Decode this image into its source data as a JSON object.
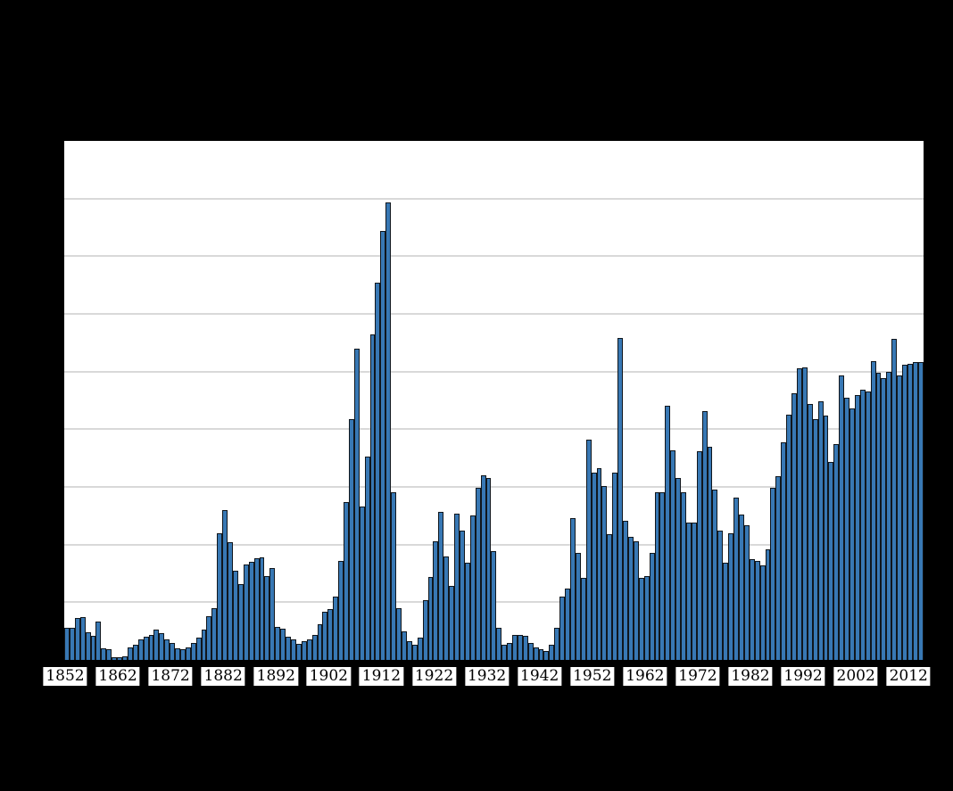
{
  "window": {
    "background": "#000000"
  },
  "chart_data": {
    "type": "bar",
    "title": "",
    "xlabel": "",
    "ylabel": "",
    "grid": "horizontal",
    "legend": "none",
    "year_first": 1852,
    "year_last": 2014,
    "x_tick_labels": [
      "1852",
      "1862",
      "1872",
      "1882",
      "1892",
      "1902",
      "1912",
      "1922",
      "1932",
      "1942",
      "1952",
      "1962",
      "1972",
      "1982",
      "1992",
      "2002",
      "2012"
    ],
    "ylim": [
      0,
      450
    ],
    "gridline_step": 50,
    "gridline_values": [
      50,
      100,
      150,
      200,
      250,
      300,
      350,
      400
    ],
    "values": [
      28,
      28,
      36,
      37,
      24,
      21,
      33,
      10,
      9,
      2,
      2,
      3,
      11,
      13,
      18,
      20,
      22,
      26,
      23,
      18,
      15,
      10,
      9,
      11,
      15,
      19,
      26,
      38,
      45,
      110,
      130,
      102,
      77,
      66,
      83,
      85,
      88,
      89,
      73,
      80,
      29,
      27,
      20,
      18,
      14,
      16,
      18,
      22,
      31,
      42,
      44,
      55,
      86,
      137,
      209,
      270,
      133,
      176,
      282,
      327,
      372,
      397,
      145,
      45,
      25,
      16,
      13,
      19,
      52,
      72,
      103,
      128,
      90,
      64,
      127,
      112,
      84,
      125,
      149,
      160,
      158,
      94,
      28,
      13,
      15,
      22,
      22,
      21,
      15,
      11,
      9,
      8,
      13,
      28,
      55,
      62,
      123,
      93,
      71,
      191,
      162,
      166,
      151,
      109,
      162,
      279,
      121,
      107,
      103,
      71,
      73,
      93,
      145,
      145,
      220,
      182,
      158,
      145,
      119,
      119,
      181,
      216,
      185,
      148,
      112,
      84,
      110,
      141,
      126,
      117,
      87,
      86,
      82,
      96,
      149,
      159,
      189,
      213,
      231,
      253,
      254,
      222,
      209,
      224,
      212,
      172,
      187,
      247,
      227,
      218,
      230,
      234,
      233,
      259,
      249,
      244,
      250,
      278,
      247,
      256,
      257,
      258,
      258
    ],
    "colors": {
      "bar_fill": "#3878b4",
      "bar_outline": "#10161c",
      "gridline": "#d9d9d9",
      "plot_background": "#ffffff",
      "canvas_background": "#000000",
      "tick_label_background": "#ffffff",
      "tick_label_color": "#000000"
    }
  }
}
